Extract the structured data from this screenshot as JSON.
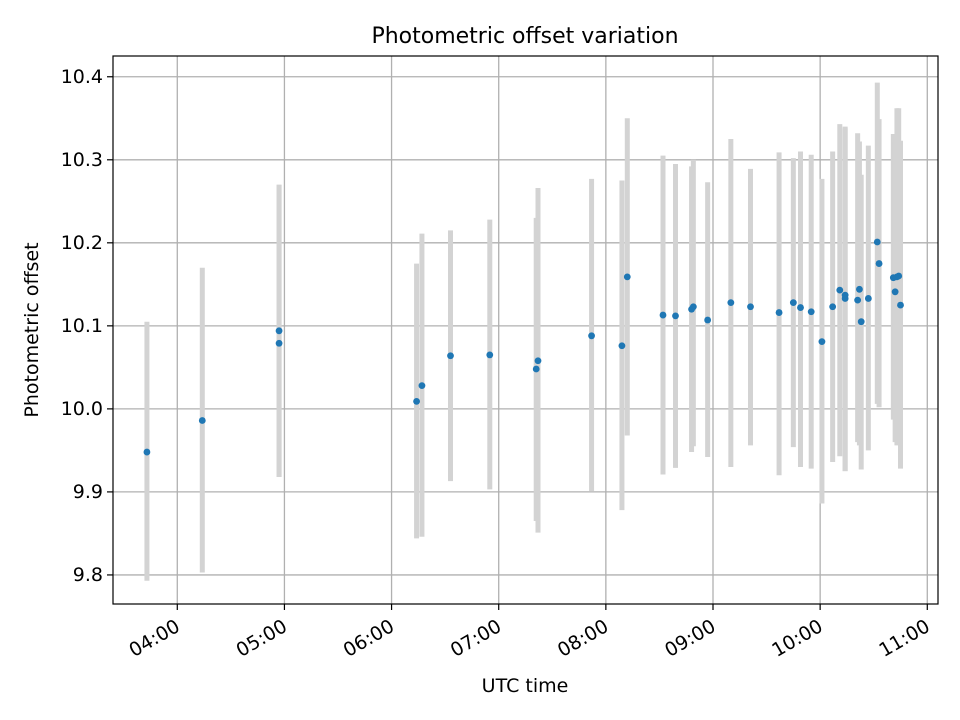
{
  "chart_data": {
    "type": "scatter",
    "title": "Photometric offset variation",
    "xlabel": "UTC time",
    "ylabel": "Photometric offset",
    "xlim": [
      "03:24",
      "11:06"
    ],
    "ylim": [
      9.765,
      10.425
    ],
    "x_ticks": [
      "04:00",
      "05:00",
      "06:00",
      "07:00",
      "08:00",
      "09:00",
      "10:00",
      "11:00"
    ],
    "y_ticks": [
      "9.8",
      "9.9",
      "10.0",
      "10.1",
      "10.2",
      "10.3",
      "10.4"
    ],
    "grid": true,
    "marker_color": "#1f77b4",
    "errorbar_color": "#d3d3d3",
    "series": [
      {
        "points": [
          {
            "x": "03:43",
            "y": 9.948,
            "lo": 9.793,
            "hi": 10.105
          },
          {
            "x": "04:14",
            "y": 9.986,
            "lo": 9.803,
            "hi": 10.17
          },
          {
            "x": "04:57",
            "y": 10.094,
            "lo": 9.918,
            "hi": 10.27
          },
          {
            "x": "04:57",
            "y": 10.079,
            "lo": 9.918,
            "hi": 10.27
          },
          {
            "x": "06:14",
            "y": 10.009,
            "lo": 9.844,
            "hi": 10.175
          },
          {
            "x": "06:17",
            "y": 10.028,
            "lo": 9.846,
            "hi": 10.211
          },
          {
            "x": "06:33",
            "y": 10.064,
            "lo": 9.913,
            "hi": 10.215
          },
          {
            "x": "06:55",
            "y": 10.065,
            "lo": 9.903,
            "hi": 10.228
          },
          {
            "x": "07:21",
            "y": 10.048,
            "lo": 9.865,
            "hi": 10.23
          },
          {
            "x": "07:22",
            "y": 10.058,
            "lo": 9.851,
            "hi": 10.266
          },
          {
            "x": "07:52",
            "y": 10.088,
            "lo": 9.901,
            "hi": 10.277
          },
          {
            "x": "08:09",
            "y": 10.076,
            "lo": 9.878,
            "hi": 10.275
          },
          {
            "x": "08:12",
            "y": 10.159,
            "lo": 9.968,
            "hi": 10.35
          },
          {
            "x": "08:32",
            "y": 10.113,
            "lo": 9.921,
            "hi": 10.305
          },
          {
            "x": "08:39",
            "y": 10.112,
            "lo": 9.929,
            "hi": 10.295
          },
          {
            "x": "08:48",
            "y": 10.12,
            "lo": 9.948,
            "hi": 10.292
          },
          {
            "x": "08:49",
            "y": 10.123,
            "lo": 9.955,
            "hi": 10.3
          },
          {
            "x": "08:57",
            "y": 10.107,
            "lo": 9.942,
            "hi": 10.273
          },
          {
            "x": "09:10",
            "y": 10.128,
            "lo": 9.93,
            "hi": 10.325
          },
          {
            "x": "09:21",
            "y": 10.123,
            "lo": 9.956,
            "hi": 10.289
          },
          {
            "x": "09:37",
            "y": 10.116,
            "lo": 9.92,
            "hi": 10.309
          },
          {
            "x": "09:45",
            "y": 10.128,
            "lo": 9.954,
            "hi": 10.302
          },
          {
            "x": "09:49",
            "y": 10.122,
            "lo": 9.93,
            "hi": 10.31
          },
          {
            "x": "09:55",
            "y": 10.117,
            "lo": 9.928,
            "hi": 10.306
          },
          {
            "x": "10:01",
            "y": 10.081,
            "lo": 9.886,
            "hi": 10.277
          },
          {
            "x": "10:07",
            "y": 10.123,
            "lo": 9.936,
            "hi": 10.31
          },
          {
            "x": "10:11",
            "y": 10.143,
            "lo": 9.943,
            "hi": 10.343
          },
          {
            "x": "10:14",
            "y": 10.133,
            "lo": 9.925,
            "hi": 10.34
          },
          {
            "x": "10:14",
            "y": 10.137,
            "lo": 9.925,
            "hi": 10.338
          },
          {
            "x": "10:21",
            "y": 10.131,
            "lo": 9.96,
            "hi": 10.332
          },
          {
            "x": "10:22",
            "y": 10.144,
            "lo": 9.956,
            "hi": 10.322
          },
          {
            "x": "10:23",
            "y": 10.105,
            "lo": 9.927,
            "hi": 10.282
          },
          {
            "x": "10:27",
            "y": 10.133,
            "lo": 9.95,
            "hi": 10.317
          },
          {
            "x": "10:32",
            "y": 10.201,
            "lo": 10.006,
            "hi": 10.393
          },
          {
            "x": "10:33",
            "y": 10.175,
            "lo": 10.002,
            "hi": 10.349
          },
          {
            "x": "10:41",
            "y": 10.158,
            "lo": 9.987,
            "hi": 10.331
          },
          {
            "x": "10:42",
            "y": 10.141,
            "lo": 9.96,
            "hi": 10.322
          },
          {
            "x": "10:43",
            "y": 10.159,
            "lo": 9.956,
            "hi": 10.362
          },
          {
            "x": "10:44",
            "y": 10.16,
            "lo": 9.96,
            "hi": 10.362
          },
          {
            "x": "10:45",
            "y": 10.125,
            "lo": 9.928,
            "hi": 10.323
          }
        ]
      }
    ]
  }
}
